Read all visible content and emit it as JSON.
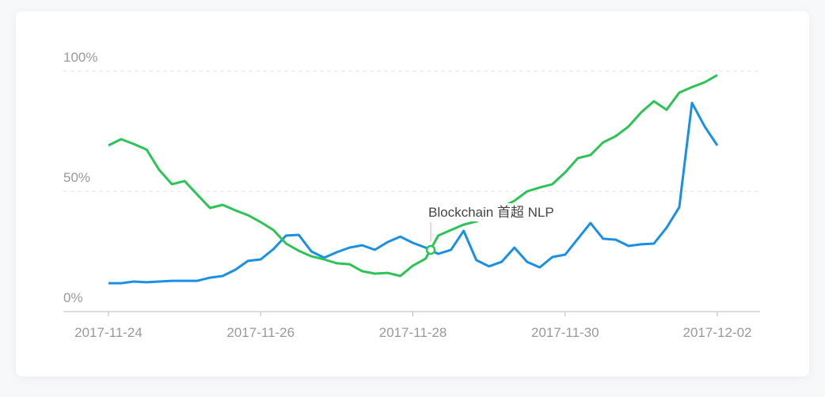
{
  "chart_data": {
    "type": "line",
    "annotation": "Blockchain 首超 NLP",
    "categories": [
      "2017-11-24",
      null,
      null,
      null,
      null,
      null,
      null,
      null,
      null,
      null,
      null,
      null,
      "2017-11-26",
      null,
      null,
      null,
      null,
      null,
      null,
      null,
      null,
      null,
      null,
      null,
      "2017-11-28",
      null,
      null,
      null,
      null,
      null,
      null,
      null,
      null,
      null,
      null,
      null,
      "2017-11-30",
      null,
      null,
      null,
      null,
      null,
      null,
      null,
      null,
      null,
      null,
      null,
      "2017-12-02"
    ],
    "series": [
      {
        "color": "#1a8fe6",
        "values": [
          11.8,
          11.8,
          12.5,
          12.2,
          12.5,
          12.8,
          12.8,
          12.8,
          14.1,
          14.8,
          17.4,
          21.1,
          21.7,
          26,
          31.6,
          31.9,
          25,
          22.4,
          24.7,
          26.6,
          27.6,
          25.7,
          28.9,
          31.2,
          28.6,
          26.6,
          24,
          25.7,
          33.6,
          21.4,
          18.8,
          20.7,
          26.6,
          20.7,
          18.4,
          22.7,
          23.7,
          30.3,
          36.8,
          30.3,
          29.9,
          27.3,
          28,
          28.3,
          34.9,
          43.4,
          86.8,
          77,
          69.1
        ]
      },
      {
        "color": "#2cc456",
        "values": [
          69.1,
          71.7,
          69.7,
          67.4,
          58.9,
          53,
          54.3,
          48.7,
          43.1,
          44.4,
          42.1,
          40.1,
          37.2,
          33.9,
          28.3,
          25.3,
          23,
          21.7,
          20.1,
          19.7,
          16.8,
          15.8,
          16.1,
          14.8,
          19.1,
          22,
          31.6,
          33.9,
          36.2,
          37.5,
          40.1,
          43.4,
          46.1,
          50,
          51.6,
          53,
          57.9,
          63.8,
          65.1,
          70.4,
          73,
          77,
          82.9,
          87.5,
          83.9,
          91.1,
          93.4,
          95.4,
          98.4
        ]
      }
    ],
    "ylim": [
      0,
      100
    ],
    "yticks": [
      {
        "value": 0,
        "label": "0%"
      },
      {
        "value": 50,
        "label": "50%"
      },
      {
        "value": 100,
        "label": "100%"
      }
    ],
    "grid": true
  }
}
